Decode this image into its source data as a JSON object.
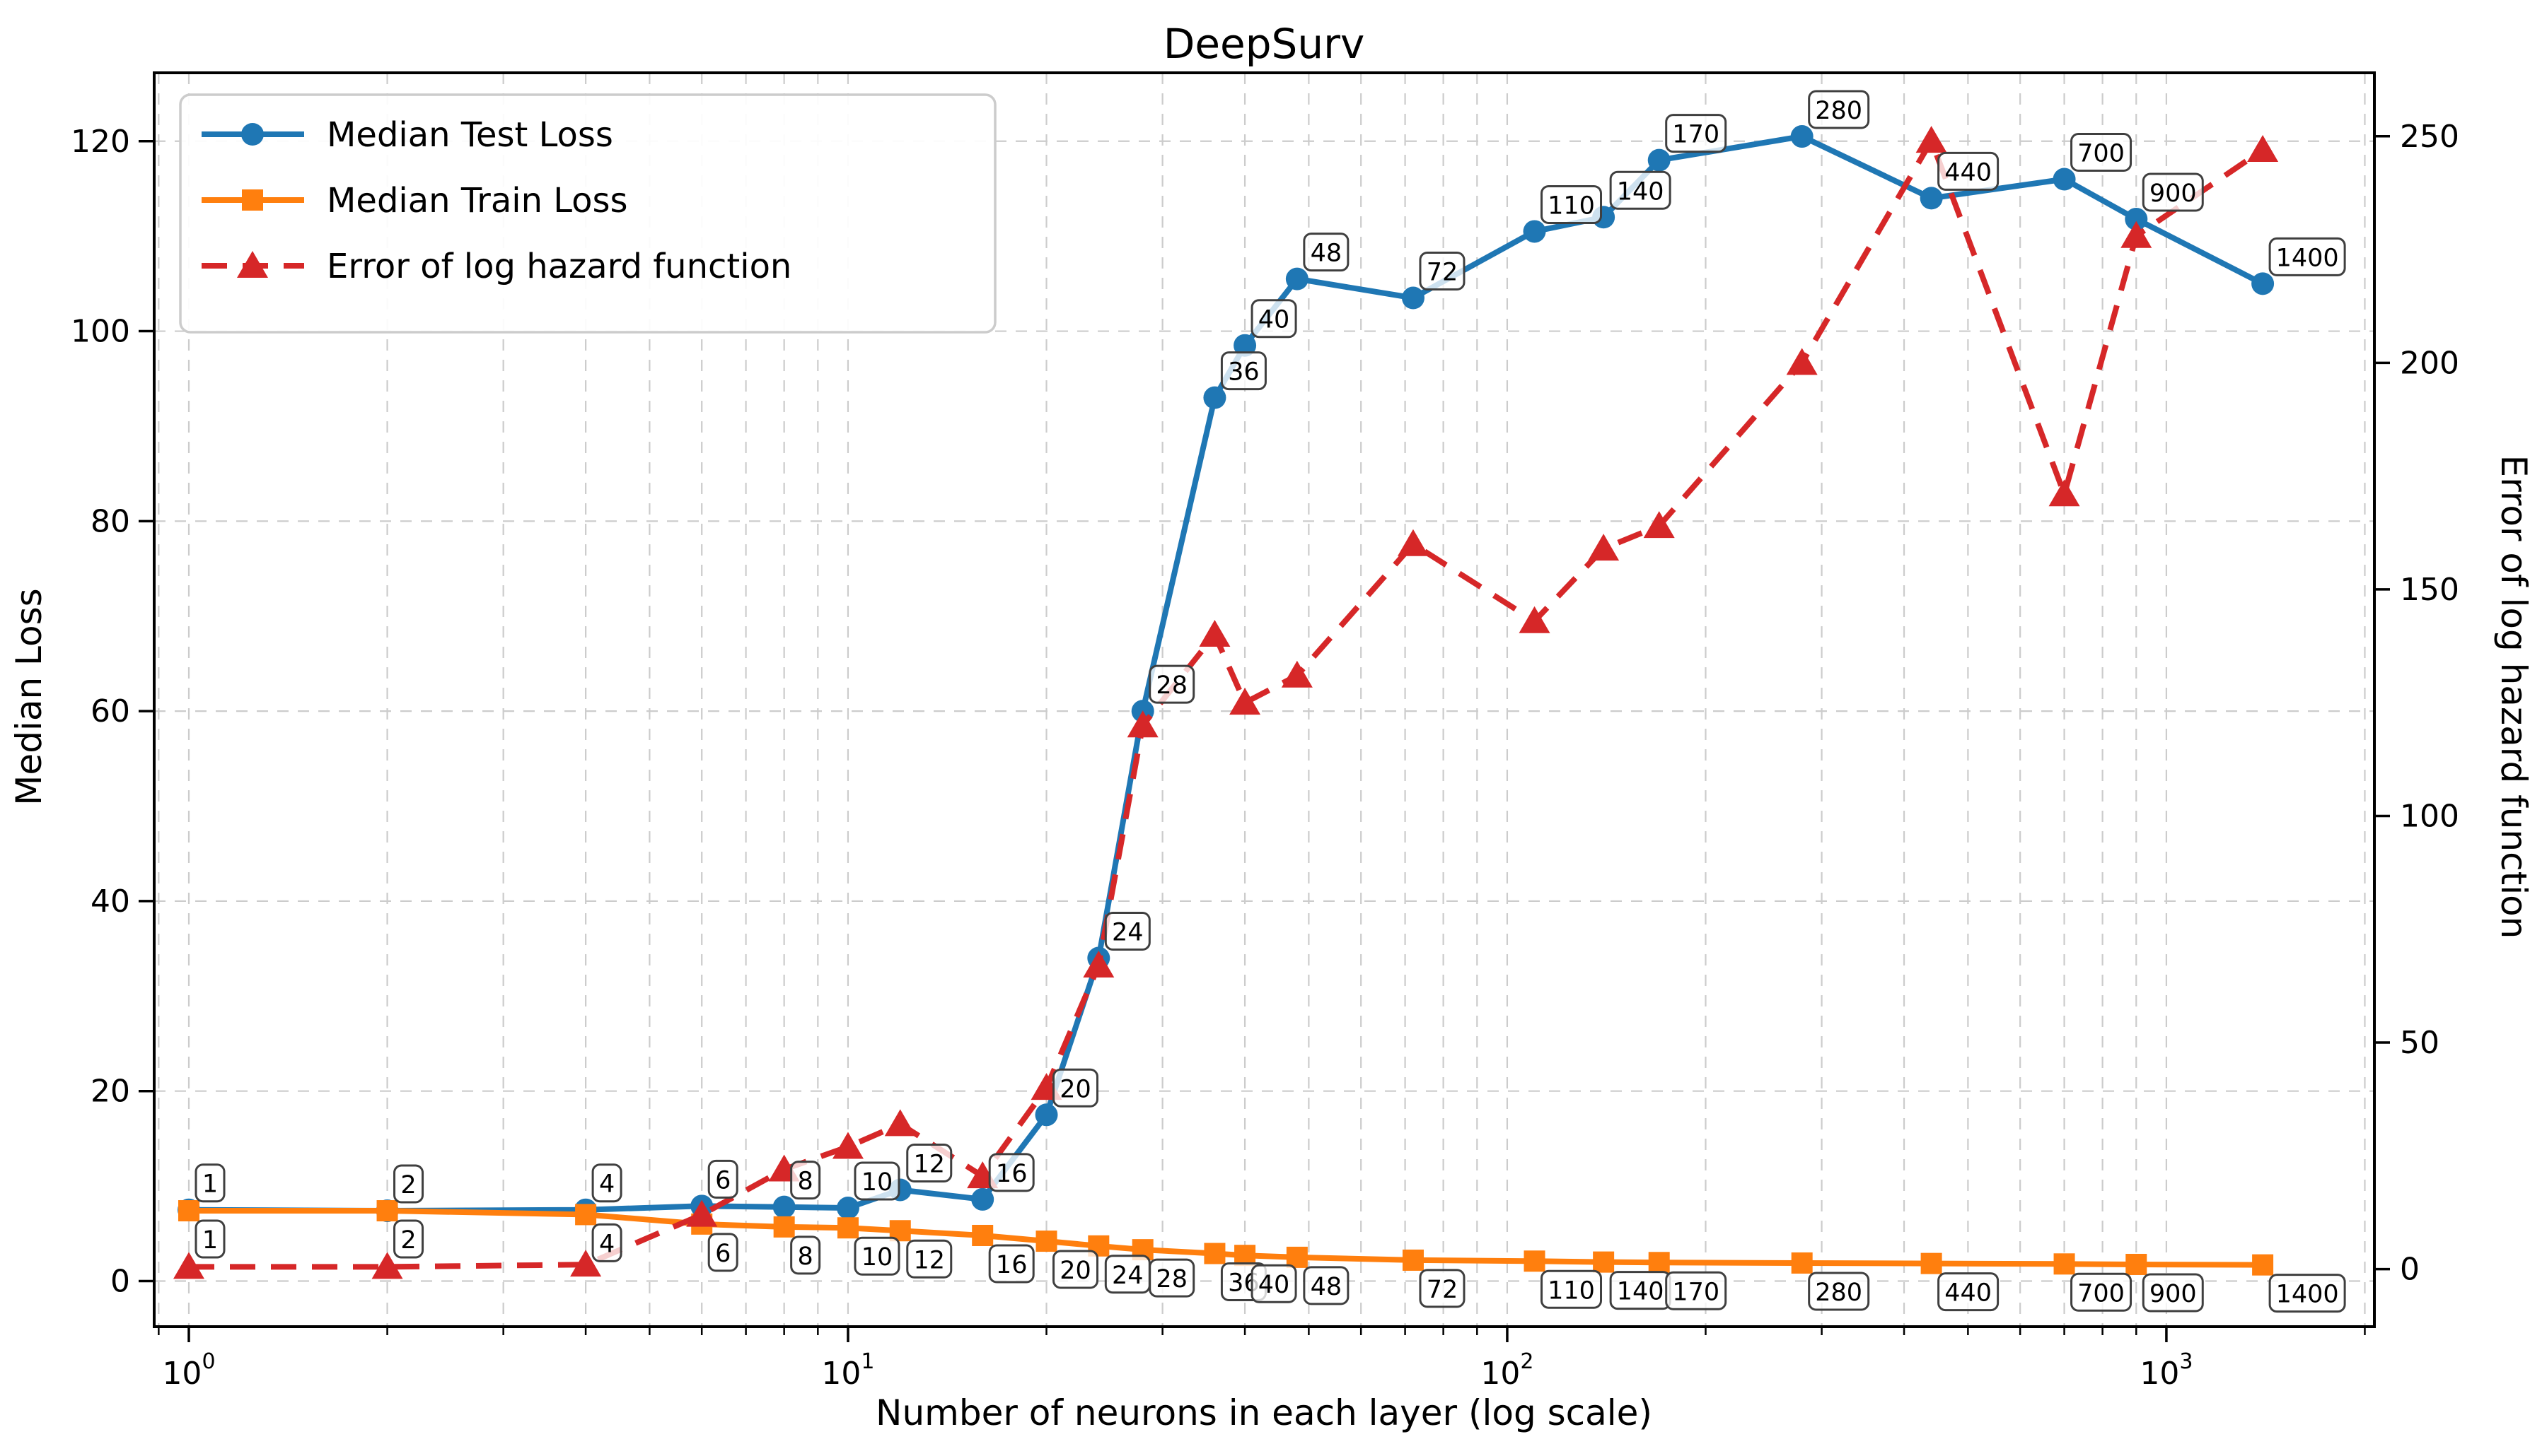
{
  "title": "DeepSurv",
  "axes": {
    "x": {
      "label": "Number of neurons in each layer (log scale)",
      "scale": "log",
      "lim": [
        0.886,
        2068
      ],
      "major_ticks": [
        {
          "v": 1,
          "base": "10",
          "exp": "0"
        },
        {
          "v": 10,
          "base": "10",
          "exp": "1"
        },
        {
          "v": 100,
          "base": "10",
          "exp": "2"
        },
        {
          "v": 1000,
          "base": "10",
          "exp": "3"
        }
      ]
    },
    "y_left": {
      "label": "Median Loss",
      "lim": [
        -4.8,
        127.2
      ],
      "ticks": [
        0,
        20,
        40,
        60,
        80,
        100,
        120
      ]
    },
    "y_right": {
      "label": "Error of log hazard function",
      "lim": [
        -12.7,
        264
      ],
      "ticks": [
        0,
        50,
        100,
        150,
        200,
        250
      ]
    }
  },
  "legend": {
    "items": [
      {
        "label": "Median Test Loss",
        "color": "#1f77b4",
        "marker": "circle",
        "linestyle": "solid"
      },
      {
        "label": "Median Train Loss",
        "color": "#ff7f0e",
        "marker": "square",
        "linestyle": "solid"
      },
      {
        "label": "Error of log hazard function",
        "color": "#d62728",
        "marker": "triangle",
        "linestyle": "dashed"
      }
    ]
  },
  "chart_data": {
    "type": "line",
    "title": "DeepSurv",
    "xlabel": "Number of neurons in each layer (log scale)",
    "ylabel_left": "Median Loss",
    "ylabel_right": "Error of log hazard function",
    "x_scale": "log",
    "grid": true,
    "legend_position": "upper left",
    "x": [
      1,
      2,
      4,
      6,
      8,
      10,
      12,
      16,
      20,
      24,
      28,
      36,
      40,
      48,
      72,
      110,
      140,
      170,
      280,
      440,
      700,
      900,
      1400
    ],
    "point_labels": [
      "1",
      "2",
      "4",
      "6",
      "8",
      "10",
      "12",
      "16",
      "20",
      "24",
      "28",
      "36",
      "40",
      "48",
      "72",
      "110",
      "140",
      "170",
      "280",
      "440",
      "700",
      "900",
      "1400"
    ],
    "series": [
      {
        "name": "Median Test Loss",
        "axis": "left",
        "color": "#1f77b4",
        "marker": "circle",
        "linestyle": "solid",
        "labels": "above",
        "values": [
          7.5,
          7.4,
          7.5,
          7.9,
          7.8,
          7.7,
          9.6,
          8.6,
          17.5,
          34,
          60,
          93,
          98.5,
          105.5,
          103.5,
          110.5,
          112,
          118,
          120.5,
          114,
          116,
          111.8,
          105
        ]
      },
      {
        "name": "Median Train Loss",
        "axis": "left",
        "color": "#ff7f0e",
        "marker": "square",
        "linestyle": "solid",
        "labels": "below",
        "values": [
          7.4,
          7.4,
          7.0,
          6.0,
          5.7,
          5.6,
          5.3,
          4.8,
          4.2,
          3.7,
          3.3,
          2.9,
          2.7,
          2.5,
          2.2,
          2.1,
          2.0,
          1.95,
          1.9,
          1.85,
          1.8,
          1.75,
          1.7
        ]
      },
      {
        "name": "Error of log hazard function",
        "axis": "right",
        "color": "#d62728",
        "marker": "triangle",
        "linestyle": "dashed",
        "labels": "none",
        "values": [
          0.5,
          0.5,
          1,
          12,
          22,
          27,
          32,
          20.5,
          40,
          67,
          120,
          140,
          125,
          131,
          160,
          143,
          159,
          164,
          200,
          249,
          171,
          228,
          247
        ]
      }
    ]
  },
  "colors": {
    "background": "#ffffff",
    "grid": "#cccccc",
    "spine": "#000000",
    "annotation_border": "#3f3f3f",
    "legend_border": "#cccccc"
  }
}
